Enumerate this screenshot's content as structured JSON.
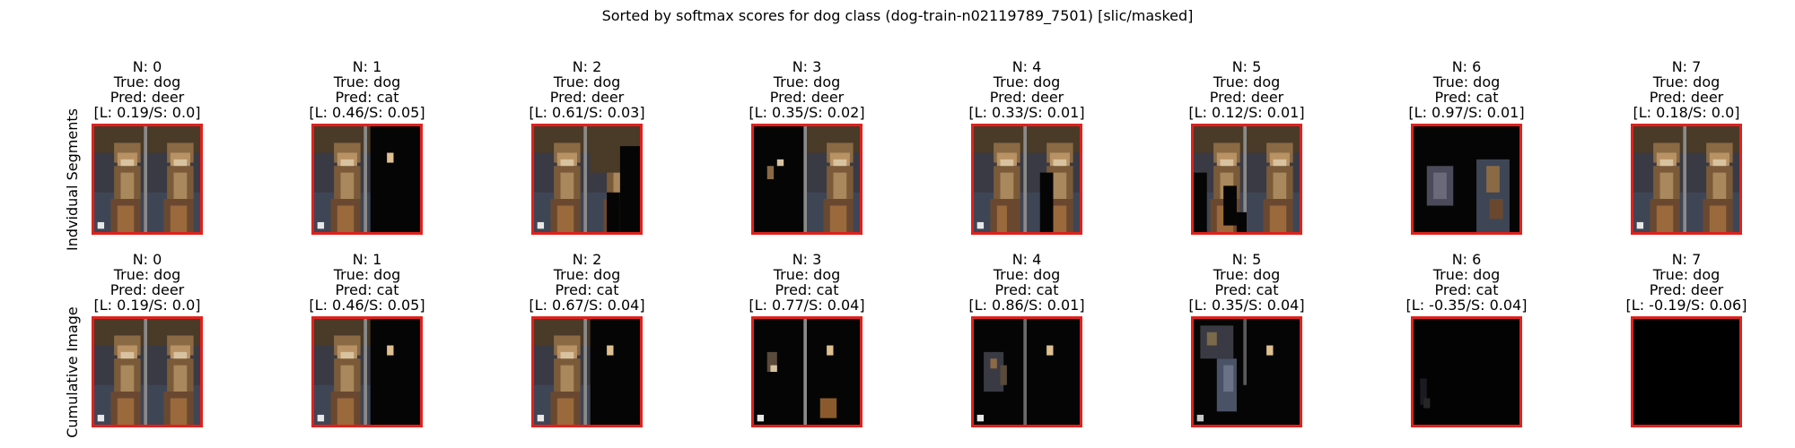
{
  "title": "Sorted by softmax scores for dog class (dog-train-n02119789_7501) [slic/masked]",
  "row_labels": [
    "Indvidual Segments",
    "Cumulative Image"
  ],
  "border_color": "#e0211d",
  "rows": [
    {
      "cells": [
        {
          "n": "N: 0",
          "true": "True: dog",
          "pred": "Pred: deer",
          "score": "[L: 0.19/S: 0.0]",
          "mask": "full"
        },
        {
          "n": "N: 1",
          "true": "True: dog",
          "pred": "Pred: cat",
          "score": "[L: 0.46/S: 0.05]",
          "mask": "right-dark"
        },
        {
          "n": "N: 2",
          "true": "True: dog",
          "pred": "Pred: deer",
          "score": "[L: 0.61/S: 0.03]",
          "mask": "right-partial"
        },
        {
          "n": "N: 3",
          "true": "True: dog",
          "pred": "Pred: deer",
          "score": "[L: 0.35/S: 0.02]",
          "mask": "left-dark"
        },
        {
          "n": "N: 4",
          "true": "True: dog",
          "pred": "Pred: deer",
          "score": "[L: 0.33/S: 0.01]",
          "mask": "right-lower-dark"
        },
        {
          "n": "N: 5",
          "true": "True: dog",
          "pred": "Pred: deer",
          "score": "[L: 0.12/S: 0.01]",
          "mask": "left-strip-dark"
        },
        {
          "n": "N: 6",
          "true": "True: dog",
          "pred": "Pred: cat",
          "score": "[L: 0.97/S: 0.01]",
          "mask": "mostly-dark"
        },
        {
          "n": "N: 7",
          "true": "True: dog",
          "pred": "Pred: deer",
          "score": "[L: 0.18/S: 0.0]",
          "mask": "full"
        }
      ]
    },
    {
      "cells": [
        {
          "n": "N: 0",
          "true": "True: dog",
          "pred": "Pred: deer",
          "score": "[L: 0.19/S: 0.0]",
          "mask": "full"
        },
        {
          "n": "N: 1",
          "true": "True: dog",
          "pred": "Pred: cat",
          "score": "[L: 0.46/S: 0.05]",
          "mask": "right-dark"
        },
        {
          "n": "N: 2",
          "true": "True: dog",
          "pred": "Pred: cat",
          "score": "[L: 0.67/S: 0.04]",
          "mask": "right-dark"
        },
        {
          "n": "N: 3",
          "true": "True: dog",
          "pred": "Pred: cat",
          "score": "[L: 0.77/S: 0.04]",
          "mask": "sparse"
        },
        {
          "n": "N: 4",
          "true": "True: dog",
          "pred": "Pred: cat",
          "score": "[L: 0.86/S: 0.01]",
          "mask": "sparse2"
        },
        {
          "n": "N: 5",
          "true": "True: dog",
          "pred": "Pred: cat",
          "score": "[L: 0.35/S: 0.04]",
          "mask": "sparse3"
        },
        {
          "n": "N: 6",
          "true": "True: dog",
          "pred": "Pred: cat",
          "score": "[L: -0.35/S: 0.04]",
          "mask": "near-black"
        },
        {
          "n": "N: 7",
          "true": "True: dog",
          "pred": "Pred: deer",
          "score": "[L: -0.19/S: 0.06]",
          "mask": "black"
        }
      ]
    }
  ]
}
